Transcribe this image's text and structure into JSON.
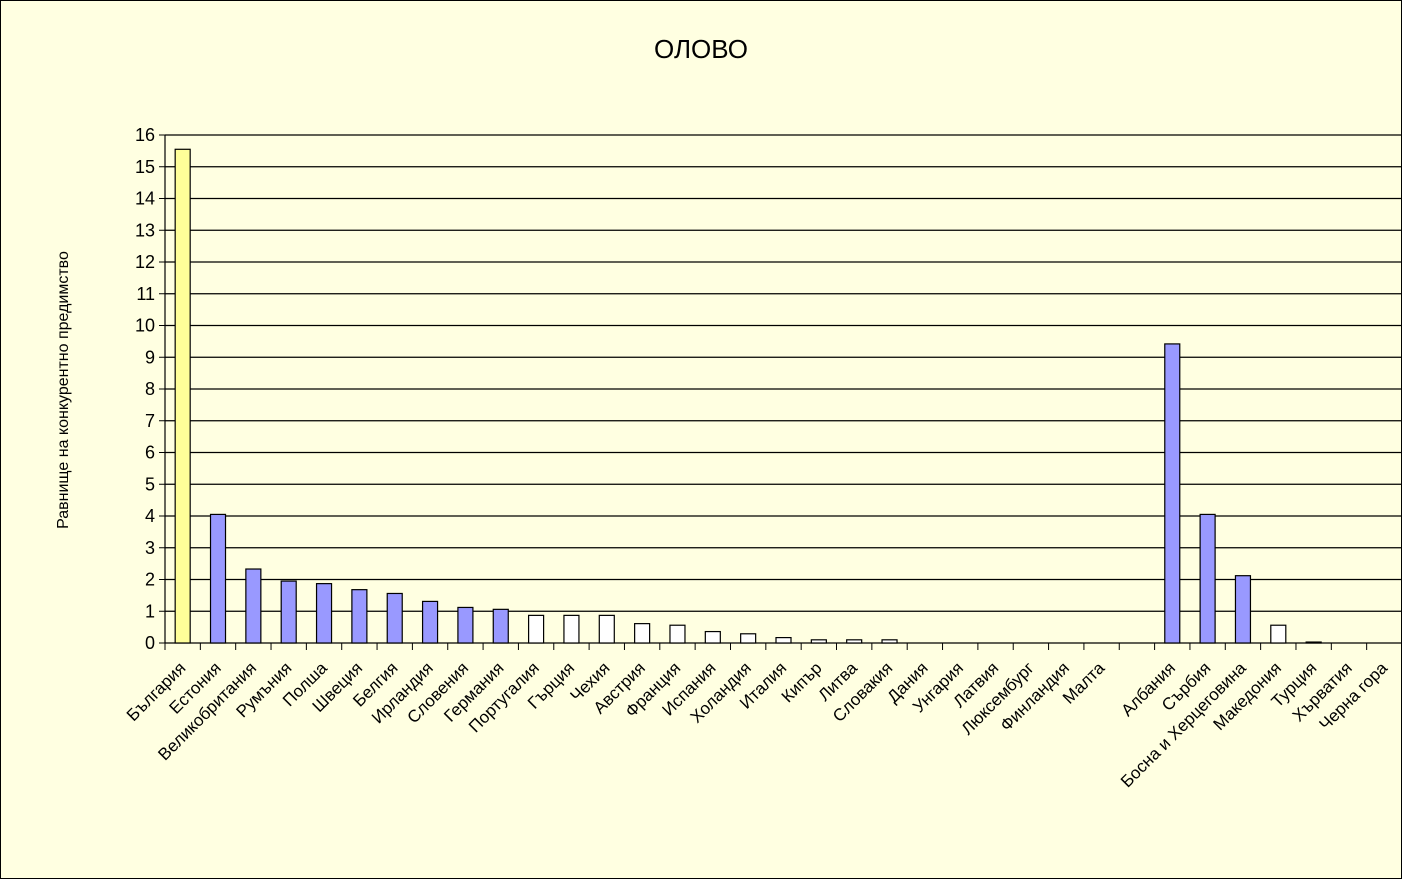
{
  "chart_data": {
    "type": "bar",
    "title": "ОЛОВО",
    "xlabel": "",
    "ylabel": "Равнище на конкурентно предимство",
    "ylim": [
      0,
      16
    ],
    "yticks": [
      0,
      1,
      2,
      3,
      4,
      5,
      6,
      7,
      8,
      9,
      10,
      11,
      12,
      13,
      14,
      15,
      16
    ],
    "grid": true,
    "categories": [
      "България",
      "Естония",
      "Великобритания",
      "Румъния",
      "Полша",
      "Швеция",
      "Белгия",
      "Ирландия",
      "Словения",
      "Германия",
      "Португалия",
      "Гърция",
      "Чехия",
      "Австрия",
      "Франция",
      "Испания",
      "Холандия",
      "Италия",
      "Кипър",
      "Литва",
      "Словакия",
      "Дания",
      "Унгария",
      "Латвия",
      "Люксембург",
      "Финландия",
      "Малта",
      "",
      "Албания",
      "Сърбия",
      "Босна и Херцеговина",
      "Македония",
      "Турция",
      "Хърватия",
      "Черна гора"
    ],
    "values": [
      15.55,
      4.05,
      2.33,
      1.95,
      1.87,
      1.68,
      1.56,
      1.31,
      1.12,
      1.06,
      0.87,
      0.87,
      0.87,
      0.61,
      0.56,
      0.36,
      0.29,
      0.17,
      0.1,
      0.1,
      0.1,
      0,
      0,
      0,
      0,
      0,
      0,
      null,
      9.42,
      4.05,
      2.12,
      0.56,
      0.03,
      0,
      0
    ],
    "bar_groups": [
      "highlight",
      "eu",
      "eu",
      "eu",
      "eu",
      "eu",
      "eu",
      "eu",
      "eu",
      "eu",
      "low",
      "low",
      "low",
      "low",
      "low",
      "low",
      "low",
      "low",
      "low",
      "low",
      "low",
      "low",
      "low",
      "low",
      "low",
      "low",
      "low",
      "none",
      "eu",
      "eu",
      "eu",
      "low",
      "low",
      "low",
      "low"
    ],
    "colors": {
      "highlight": "#ffff99",
      "eu": "#9999ff",
      "low": "#ffffff",
      "bar_outline": "#000000",
      "gridline": "#000000",
      "background": "#ffffe1"
    }
  }
}
